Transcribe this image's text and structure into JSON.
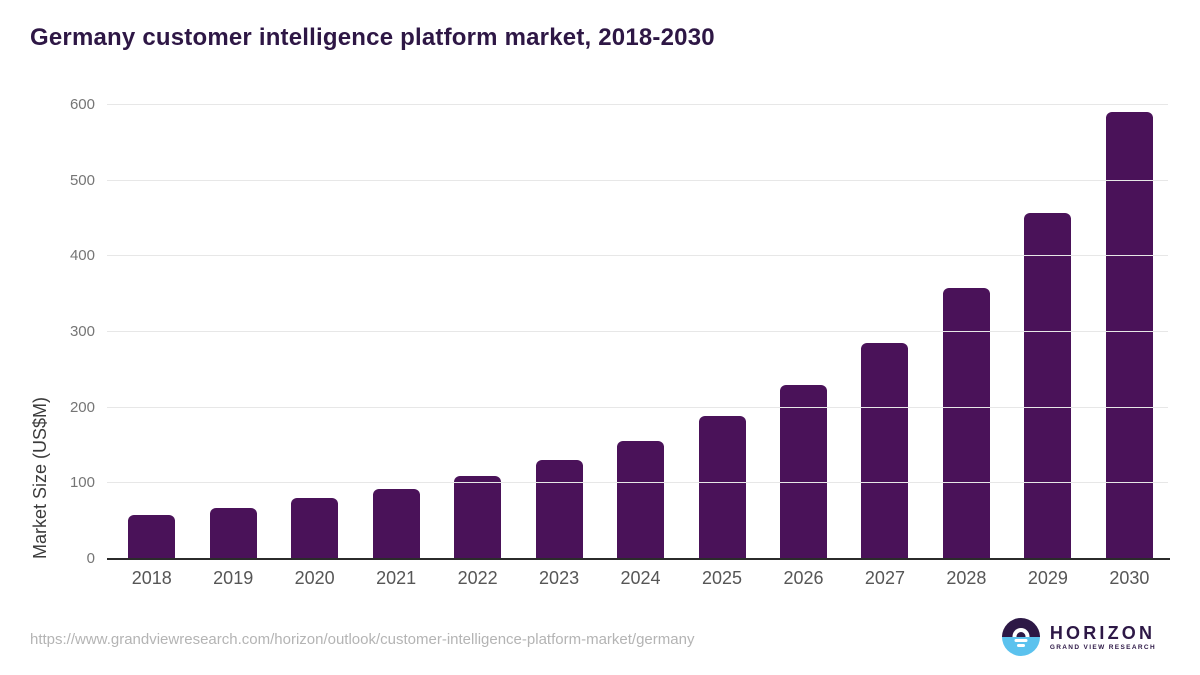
{
  "title": "Germany customer intelligence platform market, 2018-2030",
  "source_url": "https://www.grandviewresearch.com/horizon/outlook/customer-intelligence-platform-market/germany",
  "logo": {
    "wordmark": "HORIZON",
    "subtitle": "GRAND VIEW RESEARCH"
  },
  "colors": {
    "title": "#2e1745",
    "bar": "#4a1259",
    "grid": "#e7e7e7",
    "axis": "#2b2b2b",
    "y_tick_label": "#757575",
    "x_tick_label": "#565656",
    "y_axis_title": "#3b3b3b",
    "url_text": "#b4b4b4",
    "logo_purple": "#2d1846",
    "logo_blue": "#5bc2ee"
  },
  "chart_data": {
    "type": "bar",
    "title": "Germany customer intelligence platform market, 2018-2030",
    "xlabel": "",
    "ylabel": "Market Size (US$M)",
    "categories": [
      "2018",
      "2019",
      "2020",
      "2021",
      "2022",
      "2023",
      "2024",
      "2025",
      "2026",
      "2027",
      "2028",
      "2029",
      "2030"
    ],
    "values": [
      58,
      68,
      80,
      93,
      110,
      131,
      156,
      189,
      230,
      285,
      358,
      457,
      591
    ],
    "ylim": [
      0,
      600
    ],
    "yticks": [
      0,
      100,
      200,
      300,
      400,
      500,
      600
    ],
    "grid": true,
    "legend": false,
    "bar_color": "#4a1259"
  }
}
